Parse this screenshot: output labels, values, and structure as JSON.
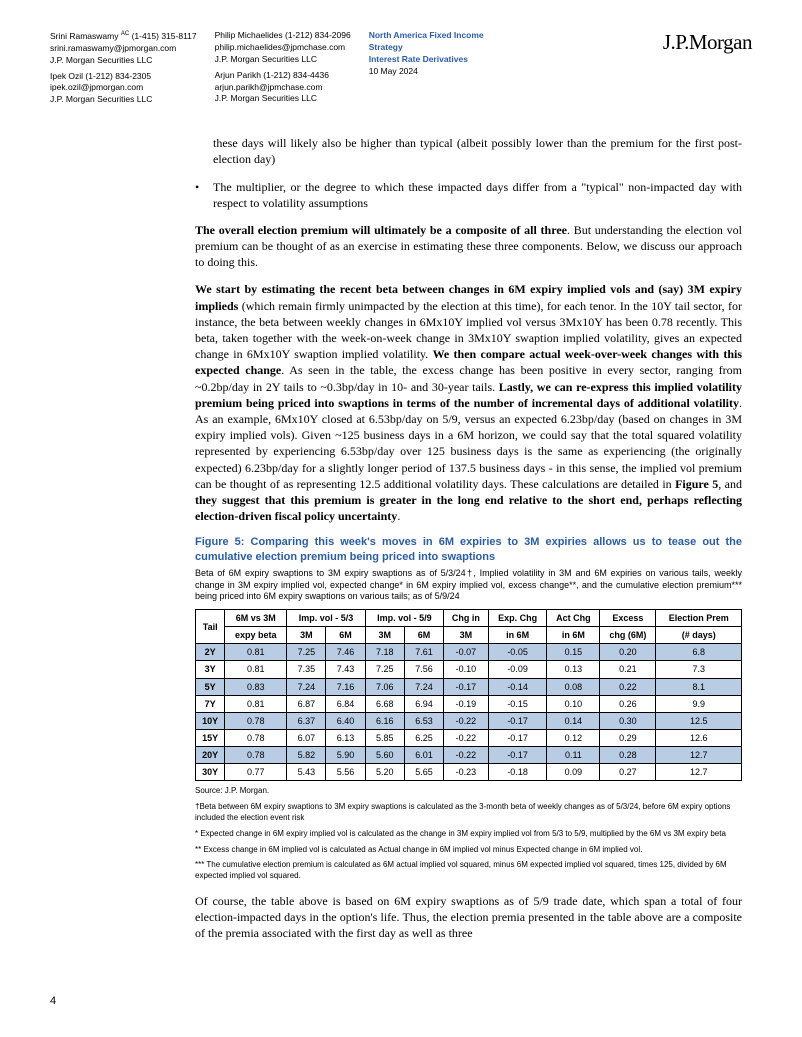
{
  "header": {
    "authors_col1": [
      {
        "name": "Srini Ramaswamy",
        "sup": "AC",
        "phone": "(1-415) 315-8117",
        "email": "srini.ramaswamy@jpmorgan.com",
        "firm": "J.P. Morgan Securities LLC"
      },
      {
        "name": "Ipek Ozil",
        "sup": "",
        "phone": "(1-212) 834-2305",
        "email": "ipek.ozil@jpmorgan.com",
        "firm": "J.P. Morgan Securities LLC"
      }
    ],
    "authors_col2": [
      {
        "name": "Philip Michaelides",
        "sup": "",
        "phone": "(1-212) 834-2096",
        "email": "philip.michaelides@jpmchase.com",
        "firm": "J.P. Morgan Securities LLC"
      },
      {
        "name": "Arjun Parikh",
        "sup": "",
        "phone": "(1-212) 834-4436",
        "email": "arjun.parikh@jpmchase.com",
        "firm": "J.P. Morgan Securities LLC"
      }
    ],
    "strategy": {
      "l1": "North America Fixed Income",
      "l2": "Strategy",
      "l3": "Interest Rate Derivatives",
      "date": "10 May 2024"
    },
    "logo": "J.P.Morgan"
  },
  "body": {
    "frag1": "these days will likely also be higher than typical (albeit possibly lower than the premium for the first post-election day)",
    "bullet": "The multiplier, or the degree to which these impacted days differ from a \"typical\" non-impacted day with respect to volatility assumptions",
    "p1a": "The overall election premium will ultimately be a composite of all three",
    "p1b": ". But understanding the election vol premium can be thought of as an exercise in estimating these three components. Below, we discuss our approach to doing this.",
    "p2a": "We start by estimating the recent beta between changes in 6M expiry implied vols and (say) 3M expiry implieds",
    "p2b": " (which remain firmly unimpacted by the election at this time), for each tenor. In the 10Y tail sector, for instance, the beta between weekly changes in 6Mx10Y implied vol versus 3Mx10Y has been 0.78 recently. This beta, taken together with the week-on-week change in 3Mx10Y swaption implied volatility, gives an expected change in 6Mx10Y swaption implied volatility. ",
    "p2c": "We then compare actual week-over-week changes with this expected change",
    "p2d": ". As seen in the table, the excess change has been positive in every sector, ranging from ~0.2bp/day in 2Y tails to ~0.3bp/day in 10- and 30-year tails. ",
    "p2e": "Lastly, we can re-express this implied volatility premium being priced into swaptions in terms of the number of incremental days of additional volatility",
    "p2f": ". As an example, 6Mx10Y closed at 6.53bp/day on 5/9, versus an expected 6.23bp/day (based on changes in 3M expiry implied vols). Given ~125 business days in a 6M horizon, we could say that the total squared volatility represented by experiencing 6.53bp/day over 125 business days is the same as experiencing (the originally expected) 6.23bp/day for a slightly longer period of 137.5 business days - in this sense, the implied vol premium can be thought of as representing 12.5 additional volatility days. These calculations are detailed in ",
    "p2g": "Figure 5",
    "p2h": ", and ",
    "p2i": "they suggest that this premium is greater in the long end relative to the short end, perhaps reflecting election-driven fiscal policy uncertainty",
    "p2j": ".",
    "p3": "Of course, the table above is based on 6M expiry swaptions as of 5/9 trade date, which span a total of four election-impacted days in the option's life. Thus, the election premia presented in the table above are a composite of the premia associated with the first day as well as three"
  },
  "figure": {
    "title": "Figure 5: Comparing this week's moves in 6M expiries to 3M expiries allows us to tease out the cumulative election premium being priced into swaptions",
    "subtitle": "Beta of 6M expiry swaptions to 3M expiry swaptions as of 5/3/24†, Implied volatility in 3M and 6M expiries on various tails, weekly change in 3M expiry implied vol, expected change* in 6M expiry implied vol, excess change**, and the cumulative election premium*** being priced into 6M expiry swaptions on various tails; as of 5/9/24",
    "columns_top": [
      "Tail",
      "6M vs 3M",
      "Imp. vol - 5/3",
      "Imp. vol - 5/9",
      "Chg in",
      "Exp. Chg",
      "Act Chg",
      "Excess",
      "Election Prem"
    ],
    "columns_bot": [
      "",
      "expy beta",
      "3M",
      "6M",
      "3M",
      "6M",
      "3M",
      "in 6M",
      "in 6M",
      "chg (6M)",
      "(# days)"
    ],
    "rows": [
      {
        "shade": true,
        "c": [
          "2Y",
          "0.81",
          "7.25",
          "7.46",
          "7.18",
          "7.61",
          "-0.07",
          "-0.05",
          "0.15",
          "0.20",
          "6.8"
        ]
      },
      {
        "shade": false,
        "c": [
          "3Y",
          "0.81",
          "7.35",
          "7.43",
          "7.25",
          "7.56",
          "-0.10",
          "-0.09",
          "0.13",
          "0.21",
          "7.3"
        ]
      },
      {
        "shade": true,
        "c": [
          "5Y",
          "0.83",
          "7.24",
          "7.16",
          "7.06",
          "7.24",
          "-0.17",
          "-0.14",
          "0.08",
          "0.22",
          "8.1"
        ]
      },
      {
        "shade": false,
        "c": [
          "7Y",
          "0.81",
          "6.87",
          "6.84",
          "6.68",
          "6.94",
          "-0.19",
          "-0.15",
          "0.10",
          "0.26",
          "9.9"
        ]
      },
      {
        "shade": true,
        "c": [
          "10Y",
          "0.78",
          "6.37",
          "6.40",
          "6.16",
          "6.53",
          "-0.22",
          "-0.17",
          "0.14",
          "0.30",
          "12.5"
        ]
      },
      {
        "shade": false,
        "c": [
          "15Y",
          "0.78",
          "6.07",
          "6.13",
          "5.85",
          "6.25",
          "-0.22",
          "-0.17",
          "0.12",
          "0.29",
          "12.6"
        ]
      },
      {
        "shade": true,
        "c": [
          "20Y",
          "0.78",
          "5.82",
          "5.90",
          "5.60",
          "6.01",
          "-0.22",
          "-0.17",
          "0.11",
          "0.28",
          "12.7"
        ]
      },
      {
        "shade": false,
        "c": [
          "30Y",
          "0.77",
          "5.43",
          "5.56",
          "5.20",
          "5.65",
          "-0.23",
          "-0.18",
          "0.09",
          "0.27",
          "12.7"
        ]
      }
    ],
    "source": "Source: J.P. Morgan.",
    "note1": "†Beta between 6M expiry swaptions to 3M expiry swaptions is calculated as the 3-month beta of weekly changes as of 5/3/24, before 6M expiry options included the election event risk",
    "note2": "* Expected change in 6M expiry implied vol is calculated as the change in 3M expiry implied vol from 5/3 to 5/9, multiplied by the 6M vs 3M expiry beta",
    "note3": "** Excess change in 6M implied vol is calculated as Actual change in 6M implied vol minus Expected change in 6M implied vol.",
    "note4": "*** The cumulative election premium is calculated as 6M actual implied vol squared, minus 6M expected implied vol squared, times 125, divided by 6M expected implied vol squared."
  },
  "table_style": {
    "shade_color": "#b8cce4",
    "border_color": "#000000",
    "font_size": 9
  },
  "page_num": "4"
}
